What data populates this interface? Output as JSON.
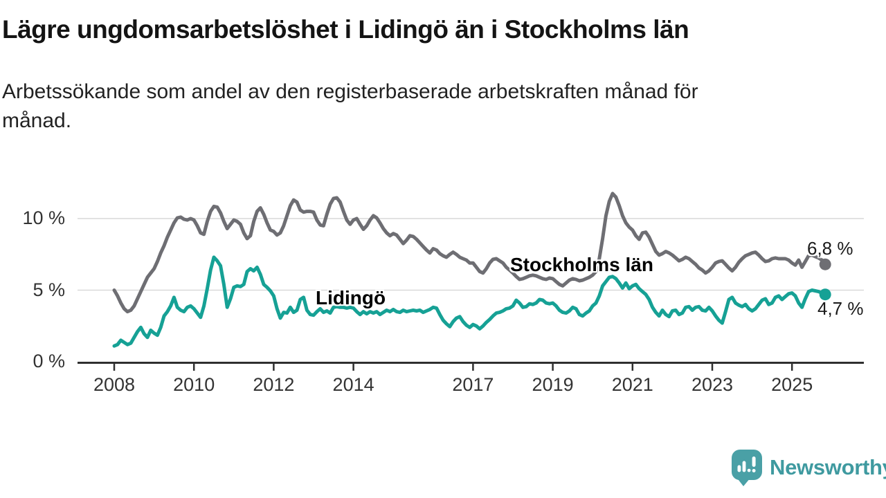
{
  "header": {
    "title": "Lägre ungdomsarbetslöshet i Lidingö än i Stockholms län",
    "subtitle_lines": [
      "Arbetssökande som andel av den registerbaserade arbetskraften månad för",
      "månad."
    ]
  },
  "chart_data": {
    "type": "line",
    "title": "Lägre ungdomsarbetslöshet i Lidingö än i Stockholms län",
    "unit": "%",
    "frequency": "monthly",
    "x_start": "2008-01",
    "x_end": "2025-11",
    "ylim": [
      0,
      12.5
    ],
    "grid": "horizontal",
    "gridline_color": "#d9d9d9",
    "axis_color": "#2f2f2f",
    "y_ticks": [
      {
        "label": "0 %",
        "value": 0
      },
      {
        "label": "5 %",
        "value": 5
      },
      {
        "label": "10 %",
        "value": 10
      }
    ],
    "x_ticks": [
      {
        "label": "2008",
        "year": 2008
      },
      {
        "label": "2010",
        "year": 2010
      },
      {
        "label": "2012",
        "year": 2012
      },
      {
        "label": "2014",
        "year": 2014
      },
      {
        "label": "2017",
        "year": 2017
      },
      {
        "label": "2019",
        "year": 2019
      },
      {
        "label": "2021",
        "year": 2021
      },
      {
        "label": "2023",
        "year": 2023
      },
      {
        "label": "2025",
        "year": 2025
      }
    ],
    "series": [
      {
        "name": "Stockholms län",
        "color": "#6e6e73",
        "end_label": "6,8 %",
        "end_value": 6.8,
        "values": [
          5.0,
          4.6,
          4.1,
          3.7,
          3.5,
          3.6,
          3.9,
          4.4,
          4.9,
          5.4,
          5.9,
          6.2,
          6.5,
          7.0,
          7.6,
          8.1,
          8.7,
          9.2,
          9.7,
          10.05,
          10.1,
          9.95,
          9.9,
          10.0,
          9.9,
          9.5,
          9.0,
          8.9,
          9.8,
          10.5,
          10.85,
          10.8,
          10.4,
          9.8,
          9.3,
          9.6,
          9.9,
          9.8,
          9.6,
          9.0,
          8.6,
          8.8,
          9.8,
          10.5,
          10.75,
          10.3,
          9.7,
          9.2,
          9.1,
          8.85,
          9.0,
          9.5,
          10.2,
          10.9,
          11.3,
          11.15,
          10.6,
          10.45,
          10.5,
          10.5,
          10.45,
          9.9,
          9.55,
          9.5,
          10.3,
          11.0,
          11.4,
          11.45,
          11.15,
          10.5,
          9.9,
          9.6,
          9.9,
          10.0,
          9.6,
          9.25,
          9.5,
          9.9,
          10.2,
          10.05,
          9.7,
          9.3,
          9.0,
          8.8,
          8.95,
          8.85,
          8.55,
          8.25,
          8.5,
          8.8,
          8.75,
          8.55,
          8.3,
          8.05,
          7.8,
          7.6,
          7.9,
          7.8,
          7.55,
          7.4,
          7.3,
          7.5,
          7.65,
          7.5,
          7.3,
          7.2,
          7.1,
          6.9,
          6.9,
          6.6,
          6.3,
          6.2,
          6.5,
          6.9,
          7.15,
          7.2,
          7.05,
          6.9,
          6.6,
          6.4,
          6.2,
          5.95,
          5.75,
          5.8,
          5.9,
          6.0,
          6.05,
          6.0,
          5.9,
          5.8,
          5.75,
          5.85,
          5.8,
          5.6,
          5.4,
          5.3,
          5.5,
          5.7,
          5.8,
          5.75,
          5.65,
          5.7,
          5.8,
          5.9,
          6.05,
          6.3,
          7.2,
          8.6,
          10.2,
          11.2,
          11.75,
          11.5,
          10.9,
          10.2,
          9.7,
          9.4,
          9.2,
          8.8,
          8.55,
          9.0,
          9.05,
          8.7,
          8.2,
          7.7,
          7.45,
          7.55,
          7.7,
          7.6,
          7.45,
          7.25,
          7.05,
          7.15,
          7.3,
          7.2,
          7.0,
          6.8,
          6.55,
          6.4,
          6.2,
          6.35,
          6.6,
          6.9,
          7.0,
          7.05,
          6.8,
          6.55,
          6.35,
          6.6,
          6.95,
          7.2,
          7.4,
          7.5,
          7.6,
          7.65,
          7.45,
          7.2,
          7.0,
          7.05,
          7.2,
          7.25,
          7.2,
          7.2,
          7.2,
          7.1,
          6.9,
          6.75,
          7.1,
          6.6,
          7.0,
          7.4,
          7.45,
          7.35,
          7.25,
          7.1,
          6.8
        ]
      },
      {
        "name": "Lidingö",
        "color": "#16a195",
        "end_label": "4,7 %",
        "end_value": 4.7,
        "values": [
          1.1,
          1.2,
          1.5,
          1.35,
          1.2,
          1.3,
          1.7,
          2.1,
          2.4,
          1.95,
          1.7,
          2.2,
          2.0,
          1.85,
          2.4,
          3.2,
          3.5,
          3.9,
          4.5,
          3.8,
          3.6,
          3.5,
          3.8,
          3.9,
          3.7,
          3.4,
          3.1,
          3.9,
          5.1,
          6.4,
          7.3,
          7.05,
          6.7,
          5.4,
          3.8,
          4.4,
          5.2,
          5.3,
          5.25,
          5.4,
          6.3,
          6.5,
          6.35,
          6.6,
          6.1,
          5.4,
          5.2,
          4.95,
          4.6,
          3.7,
          3.05,
          3.45,
          3.4,
          3.8,
          3.45,
          3.6,
          4.35,
          4.5,
          3.6,
          3.3,
          3.25,
          3.5,
          3.7,
          3.45,
          3.55,
          3.4,
          3.8,
          3.85,
          3.8,
          3.8,
          3.75,
          3.8,
          3.75,
          3.5,
          3.3,
          3.5,
          3.35,
          3.5,
          3.4,
          3.5,
          3.3,
          3.45,
          3.6,
          3.5,
          3.65,
          3.5,
          3.45,
          3.6,
          3.5,
          3.55,
          3.6,
          3.55,
          3.6,
          3.45,
          3.55,
          3.65,
          3.8,
          3.75,
          3.3,
          2.9,
          2.65,
          2.45,
          2.8,
          3.05,
          3.15,
          2.8,
          2.55,
          2.4,
          2.6,
          2.5,
          2.3,
          2.5,
          2.75,
          2.95,
          3.2,
          3.4,
          3.45,
          3.55,
          3.7,
          3.75,
          3.9,
          4.3,
          4.1,
          3.8,
          3.85,
          4.05,
          4.0,
          4.1,
          4.35,
          4.3,
          4.1,
          4.05,
          4.1,
          3.9,
          3.6,
          3.45,
          3.4,
          3.55,
          3.8,
          3.7,
          3.3,
          3.2,
          3.4,
          3.55,
          3.9,
          4.1,
          4.6,
          5.3,
          5.6,
          5.9,
          5.95,
          5.8,
          5.5,
          5.15,
          5.5,
          5.1,
          5.3,
          5.4,
          5.1,
          4.9,
          4.7,
          4.35,
          3.8,
          3.45,
          3.2,
          3.6,
          3.3,
          3.15,
          3.55,
          3.6,
          3.3,
          3.4,
          3.8,
          3.85,
          3.6,
          3.8,
          3.85,
          3.6,
          3.55,
          3.8,
          3.55,
          3.2,
          2.9,
          2.7,
          3.5,
          4.35,
          4.5,
          4.1,
          3.95,
          3.85,
          4.0,
          3.7,
          3.55,
          3.7,
          4.0,
          4.3,
          4.4,
          4.0,
          4.1,
          4.5,
          4.6,
          4.35,
          4.55,
          4.75,
          4.8,
          4.6,
          4.1,
          3.8,
          4.4,
          4.9,
          5.0,
          4.95,
          4.9,
          4.8,
          4.7
        ]
      }
    ]
  },
  "logo": {
    "text": "Newsworthy",
    "text_color": "#3f9aa0",
    "icon_color": "#4aa0a6",
    "icon": "newsworthy-speech-bubble-barchart-icon"
  }
}
